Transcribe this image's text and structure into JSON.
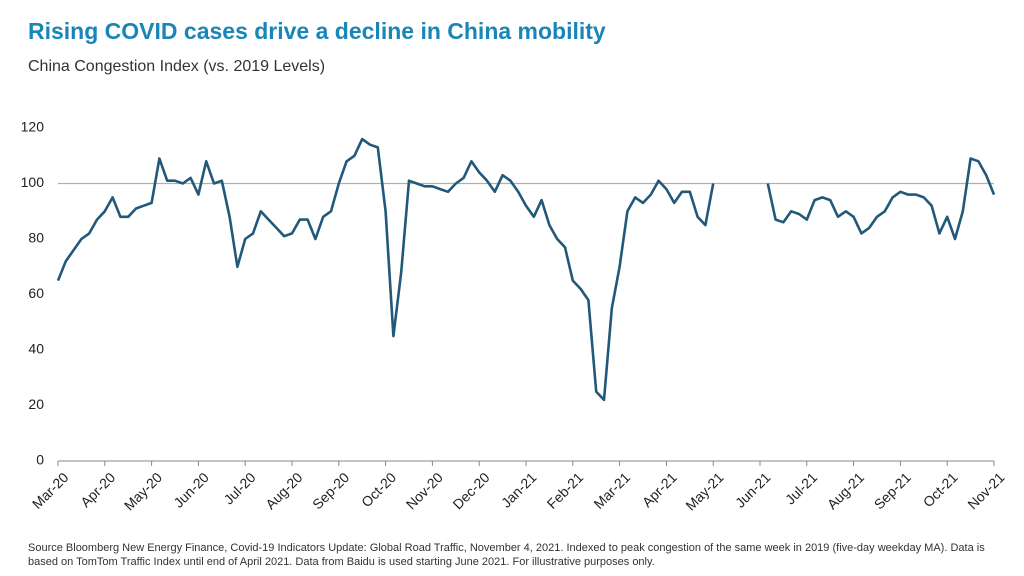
{
  "chart_data": {
    "type": "line",
    "title": "Rising COVID cases drive a decline in China mobility",
    "subtitle": "China Congestion Index (vs. 2019 Levels)",
    "source": "Source Bloomberg New Energy Finance, Covid-19 Indicators Update: Global Road Traffic, November 4, 2021. Indexed to peak congestion of the same week in 2019 (five-day weekday MA). Data is based on TomTom Traffic Index until end of April 2021. Data from Baidu is used starting June 2021. For illustrative purposes only.",
    "categories": [
      "Mar-20",
      null,
      null,
      null,
      null,
      null,
      "Apr-20",
      null,
      null,
      null,
      null,
      null,
      "May-20",
      null,
      null,
      null,
      null,
      null,
      "Jun-20",
      null,
      null,
      null,
      null,
      null,
      "Jul-20",
      null,
      null,
      null,
      null,
      null,
      "Aug-20",
      null,
      null,
      null,
      null,
      null,
      "Sep-20",
      null,
      null,
      null,
      null,
      null,
      "Oct-20",
      null,
      null,
      null,
      null,
      null,
      "Nov-20",
      null,
      null,
      null,
      null,
      null,
      "Dec-20",
      null,
      null,
      null,
      null,
      null,
      "Jan-21",
      null,
      null,
      null,
      null,
      null,
      "Feb-21",
      null,
      null,
      null,
      null,
      null,
      "Mar-21",
      null,
      null,
      null,
      null,
      null,
      "Apr-21",
      null,
      null,
      null,
      null,
      null,
      "May-21",
      null,
      null,
      null,
      null,
      null,
      "Jun-21",
      null,
      null,
      null,
      null,
      null,
      "Jul-21",
      null,
      null,
      null,
      null,
      null,
      "Aug-21",
      null,
      null,
      null,
      null,
      null,
      "Sep-21",
      null,
      null,
      null,
      null,
      null,
      "Oct-21",
      null,
      null,
      null,
      null,
      null,
      "Nov-21"
    ],
    "series": [
      {
        "name": "China Congestion Index",
        "color": "#22587a",
        "values": [
          65,
          72,
          76,
          80,
          82,
          87,
          90,
          95,
          88,
          88,
          91,
          92,
          93,
          109,
          101,
          101,
          100,
          102,
          96,
          108,
          100,
          101,
          88,
          70,
          80,
          82,
          90,
          87,
          84,
          81,
          82,
          87,
          87,
          80,
          88,
          90,
          100,
          108,
          110,
          116,
          114,
          113,
          90,
          45,
          68,
          101,
          100,
          99,
          99,
          98,
          97,
          100,
          102,
          108,
          104,
          101,
          97,
          103,
          101,
          97,
          92,
          88,
          94,
          85,
          80,
          77,
          65,
          62,
          58,
          25,
          22,
          55,
          70,
          90,
          95,
          93,
          96,
          101,
          98,
          93,
          97,
          97,
          88,
          85,
          100,
          null,
          null,
          null,
          null,
          null,
          null,
          100,
          87,
          86,
          90,
          89,
          87,
          94,
          95,
          94,
          88,
          90,
          88,
          82,
          84,
          88,
          90,
          95,
          97,
          96,
          96,
          95,
          92,
          82,
          88,
          80,
          90,
          109,
          108,
          103,
          96
        ]
      }
    ],
    "ylim": [
      0,
      120
    ],
    "yticks": [
      0,
      20,
      40,
      60,
      80,
      100,
      120
    ],
    "reference_line": 100
  }
}
